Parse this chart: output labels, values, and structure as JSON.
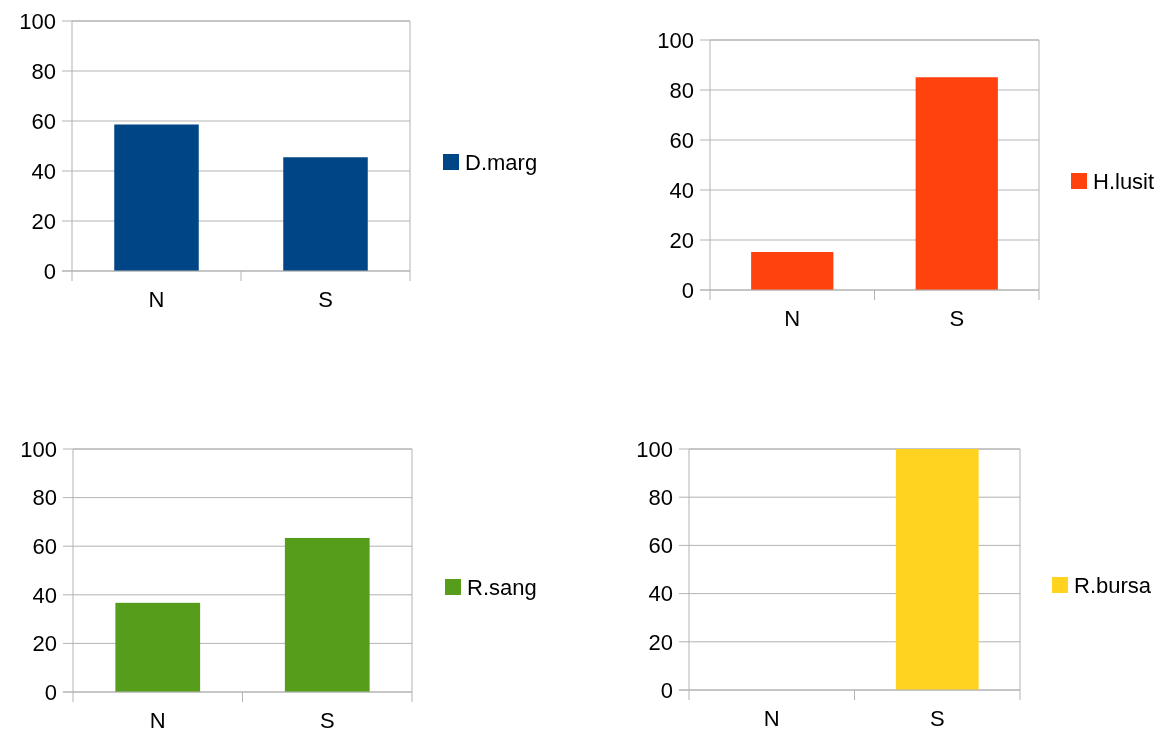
{
  "chart_data": [
    {
      "type": "bar",
      "categories": [
        "N",
        "S"
      ],
      "series": [
        {
          "name": "D.marg",
          "color": "#004586",
          "values": [
            58.6,
            45.5
          ]
        }
      ],
      "ylim": [
        0,
        100
      ],
      "yticks": [
        0,
        20,
        40,
        60,
        80,
        100
      ],
      "grid": "y",
      "legend": "right"
    },
    {
      "type": "bar",
      "categories": [
        "N",
        "S"
      ],
      "series": [
        {
          "name": "H.lusit",
          "color": "#ff420e",
          "values": [
            15.2,
            85.1
          ]
        }
      ],
      "ylim": [
        0,
        100
      ],
      "yticks": [
        0,
        20,
        40,
        60,
        80,
        100
      ],
      "grid": "y",
      "legend": "right"
    },
    {
      "type": "bar",
      "categories": [
        "N",
        "S"
      ],
      "series": [
        {
          "name": "R.sang",
          "color": "#579d1c",
          "values": [
            36.7,
            63.4
          ]
        }
      ],
      "ylim": [
        0,
        100
      ],
      "yticks": [
        0,
        20,
        40,
        60,
        80,
        100
      ],
      "grid": "y",
      "legend": "right"
    },
    {
      "type": "bar",
      "categories": [
        "N",
        "S"
      ],
      "series": [
        {
          "name": "R.bursa",
          "color": "#ffd320",
          "values": [
            0,
            100
          ]
        }
      ],
      "ylim": [
        0,
        100
      ],
      "yticks": [
        0,
        20,
        40,
        60,
        80,
        100
      ],
      "grid": "y",
      "legend": "right"
    }
  ]
}
